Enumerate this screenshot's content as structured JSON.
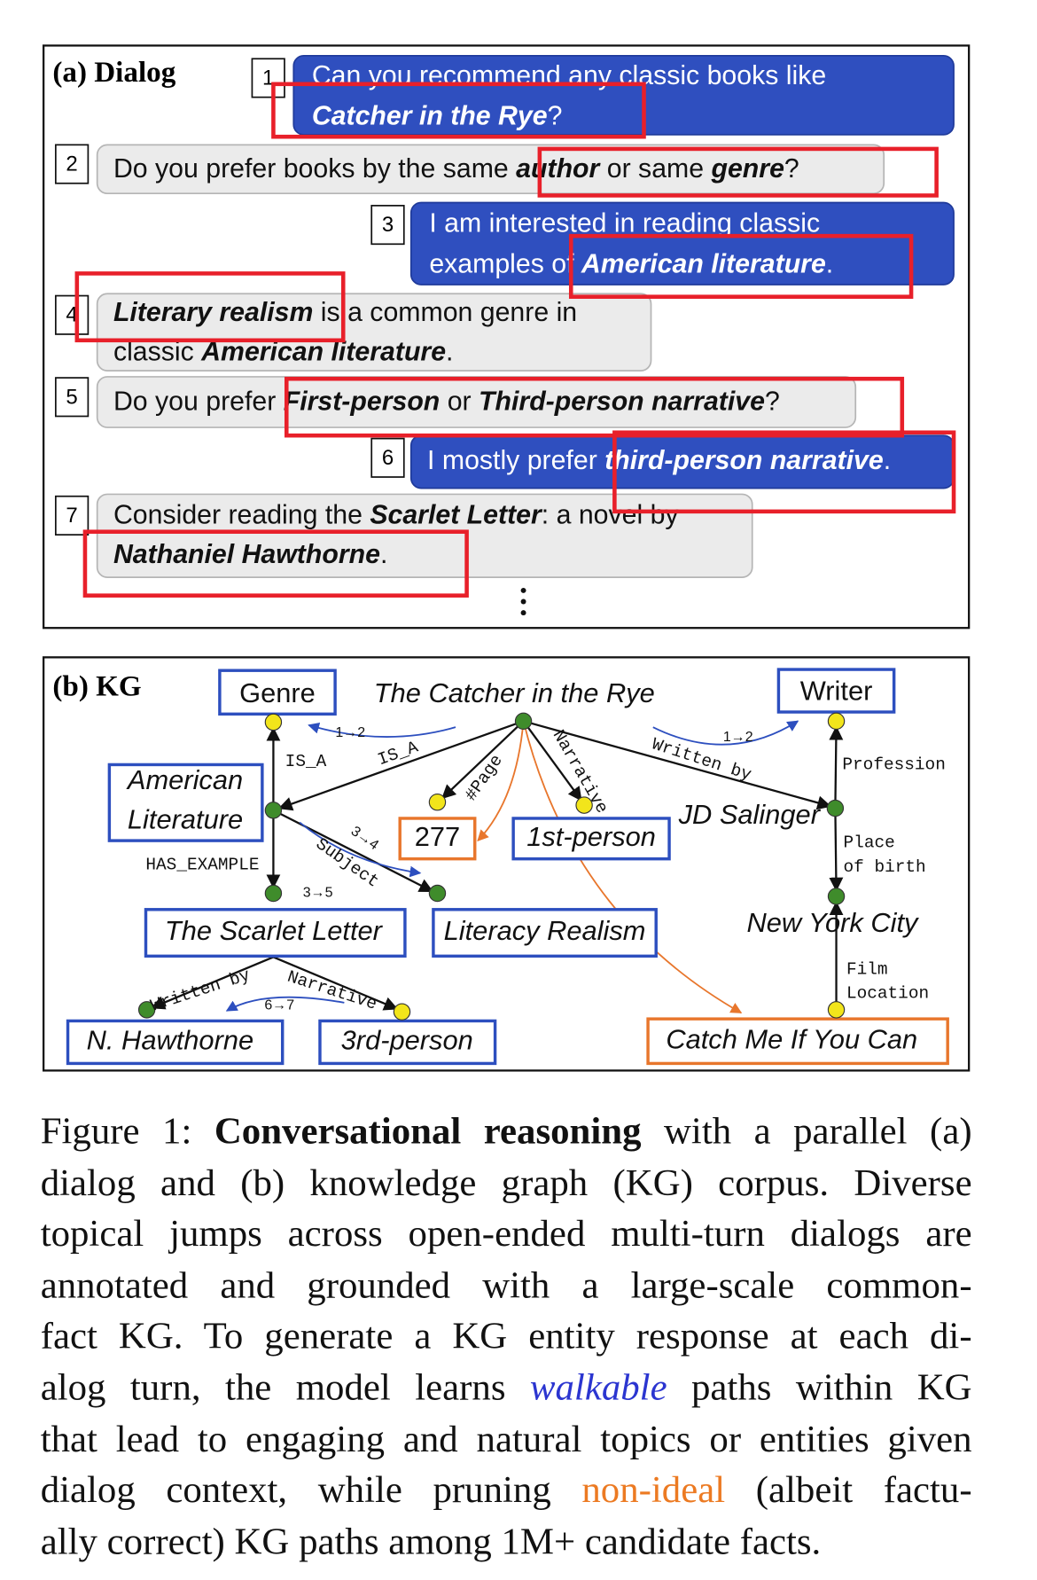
{
  "dialog": {
    "label": "(a) Dialog",
    "turns": [
      {
        "number": 1,
        "bubble_color": "#2f4fbf",
        "lines": [
          [
            {
              "text": "Can you recommend any classic books like"
            }
          ],
          [
            {
              "text": "Catcher in the Rye",
              "emphasis": true
            },
            {
              "text": "?"
            }
          ]
        ]
      },
      {
        "number": 2,
        "bubble_color": "#ebebeb",
        "lines": [
          [
            {
              "text": "Do you prefer books by the same "
            },
            {
              "text": "author",
              "emphasis": true
            },
            {
              "text": " or same "
            },
            {
              "text": "genre",
              "emphasis": true
            },
            {
              "text": "?"
            }
          ]
        ]
      },
      {
        "number": 3,
        "bubble_color": "#2f4fbf",
        "lines": [
          [
            {
              "text": "I am interested in reading classic"
            }
          ],
          [
            {
              "text": "examples of "
            },
            {
              "text": "American literature",
              "emphasis": true
            },
            {
              "text": "."
            }
          ]
        ]
      },
      {
        "number": 4,
        "bubble_color": "#ebebeb",
        "lines": [
          [
            {
              "text": "Literary realism",
              "emphasis": true
            },
            {
              "text": " is a common genre in"
            }
          ],
          [
            {
              "text": "classic "
            },
            {
              "text": "American literature",
              "emphasis": true
            },
            {
              "text": "."
            }
          ]
        ]
      },
      {
        "number": 5,
        "bubble_color": "#ebebeb",
        "lines": [
          [
            {
              "text": "Do you prefer "
            },
            {
              "text": "First-person",
              "emphasis": true
            },
            {
              "text": " or "
            },
            {
              "text": "Third-person narrative",
              "emphasis": true
            },
            {
              "text": "?"
            }
          ]
        ]
      },
      {
        "number": 6,
        "bubble_color": "#2f4fbf",
        "lines": [
          [
            {
              "text": "I mostly prefer "
            },
            {
              "text": "third-person narrative",
              "emphasis": true
            },
            {
              "text": "."
            }
          ]
        ]
      },
      {
        "number": 7,
        "bubble_color": "#ebebeb",
        "lines": [
          [
            {
              "text": "Consider reading the "
            },
            {
              "text": "Scarlet Letter",
              "emphasis": true
            },
            {
              "text": ": a novel by"
            }
          ],
          [
            {
              "text": "Nathaniel Hawthorne",
              "emphasis": true
            },
            {
              "text": "."
            }
          ]
        ]
      }
    ]
  },
  "kg": {
    "label": "(b) KG",
    "nodes": [
      {
        "lines": [
          "Genre"
        ],
        "box": "#2d4fbf",
        "dot": "#f2e51b"
      },
      {
        "lines": [
          "The Catcher in the Rye"
        ],
        "italic": true,
        "dot": "#3f8c2b"
      },
      {
        "lines": [
          "Writer"
        ],
        "box": "#2d4fbf",
        "dot": "#f2e51b"
      },
      {
        "lines": [
          "American",
          "Literature"
        ],
        "italic": true,
        "box": "#2d4fbf",
        "dot": "#3f8c2b"
      },
      {
        "lines": [
          "277"
        ],
        "box": "#e8762c",
        "dot": "#f2e51b"
      },
      {
        "lines": [
          "1st-person"
        ],
        "italic": true,
        "box": "#2d4fbf",
        "dot": "#f2e51b"
      },
      {
        "lines": [
          "JD Salinger"
        ],
        "italic": true,
        "dot": "#3f8c2b"
      },
      {
        "lines": [
          "The Scarlet Letter"
        ],
        "italic": true,
        "box": "#2d4fbf",
        "dot": "#3f8c2b"
      },
      {
        "lines": [
          "Literacy Realism"
        ],
        "italic": true,
        "box": "#2d4fbf",
        "dot": "#3f8c2b"
      },
      {
        "lines": [
          "New York City"
        ],
        "italic": true,
        "dot": "#3f8c2b"
      },
      {
        "lines": [
          "N. Hawthorne"
        ],
        "italic": true,
        "box": "#2d4fbf",
        "dot": "#3f8c2b"
      },
      {
        "lines": [
          "3rd-person"
        ],
        "italic": true,
        "box": "#2d4fbf",
        "dot": "#f2e51b"
      },
      {
        "lines": [
          "Catch Me If You Can"
        ],
        "italic": true,
        "box": "#e8762c",
        "dot": "#f2e51b"
      }
    ],
    "edge_labels": [
      [
        "IS_A"
      ],
      [
        "IS_A"
      ],
      [
        "#Page"
      ],
      [
        "Narrative"
      ],
      [
        "Written by"
      ],
      [
        "Profession"
      ],
      [
        "Place",
        "of birth"
      ],
      [
        "Film",
        "Location"
      ],
      [
        "HAS_EXAMPLE"
      ],
      [
        "Subject"
      ],
      [
        "Written by"
      ],
      [
        "Narrative"
      ]
    ],
    "steps": [
      "1→2",
      "1→2",
      "3→4",
      "3→5",
      "6→7"
    ]
  },
  "caption": {
    "lines": [
      [
        {
          "text": "Figure 1: "
        },
        {
          "text": "Conversational reasoning",
          "bold": true
        },
        {
          "text": " with a parallel (a)"
        }
      ],
      [
        {
          "text": "dialog and (b) knowledge graph (KG) corpus. Diverse"
        }
      ],
      [
        {
          "text": "topical jumps across open-ended multi-turn dialogs are"
        }
      ],
      [
        {
          "text": "annotated and grounded with a large-scale common-"
        }
      ],
      [
        {
          "text": "fact KG. To generate a KG entity response at each di-"
        }
      ],
      [
        {
          "text": "alog turn, the model learns "
        },
        {
          "text": "walkable",
          "italic": true,
          "color": "#2b35d0"
        },
        {
          "text": " paths within KG"
        }
      ],
      [
        {
          "text": "that lead to engaging and natural topics or entities given"
        }
      ],
      [
        {
          "text": "dialog context, while pruning "
        },
        {
          "text": "non-ideal",
          "color": "#ec7a22"
        },
        {
          "text": " (albeit factu-"
        }
      ],
      [
        {
          "text": "ally correct) KG paths among 1M+ candidate facts."
        }
      ]
    ]
  }
}
